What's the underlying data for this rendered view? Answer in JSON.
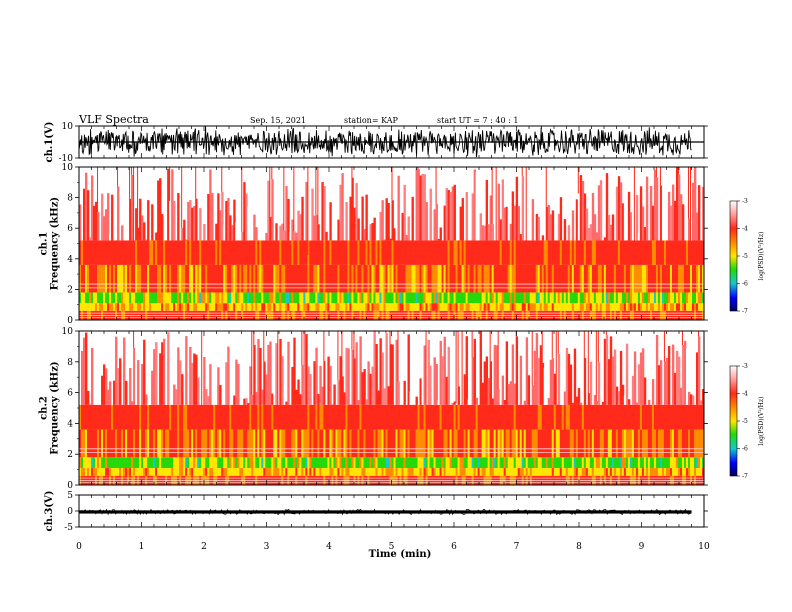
{
  "header": {
    "title": "VLF Spectra",
    "date": "Sep. 15, 2021",
    "station": "station= KAP",
    "start": "start  UT =  7 : 40 : 1"
  },
  "chart_data": [
    {
      "type": "line",
      "name": "ch1-waveform",
      "ylabel": "ch.1(V)",
      "ylim": [
        -10,
        10
      ],
      "yticks": [
        "10",
        "-10"
      ],
      "xlim": [
        0,
        10
      ],
      "note": "dense oscillating voltage trace spanning roughly -10 to 10 V"
    },
    {
      "type": "heatmap",
      "name": "ch1-spectrogram",
      "ylabel": "ch.1\nFrequency (kHz)",
      "ylim": [
        0,
        10
      ],
      "yticks": [
        "0",
        "2",
        "4",
        "6",
        "8",
        "10"
      ],
      "xlim": [
        0,
        10
      ],
      "colorbar": {
        "label": "log(PSD)(V²/Hz)",
        "range": [
          -7,
          -3
        ],
        "ticks": [
          "-3",
          "-4",
          "-5",
          "-6",
          "-7"
        ]
      }
    },
    {
      "type": "heatmap",
      "name": "ch2-spectrogram",
      "ylabel": "ch.2\nFrequency (kHz)",
      "ylim": [
        0,
        10
      ],
      "yticks": [
        "0",
        "2",
        "4",
        "6",
        "8",
        "10"
      ],
      "xlim": [
        0,
        10
      ],
      "colorbar": {
        "label": "log(PSD)(V²/Hz)",
        "range": [
          -7,
          -3
        ],
        "ticks": [
          "-3",
          "-4",
          "-5",
          "-6",
          "-7"
        ]
      }
    },
    {
      "type": "line",
      "name": "ch3-waveform",
      "ylabel": "ch.3(V)",
      "ylim": [
        -5,
        5
      ],
      "yticks": [
        "5",
        "0",
        "-5"
      ],
      "xlim": [
        0,
        10
      ],
      "note": "nearly flat trace around -0.3 V"
    }
  ],
  "xaxis": {
    "label": "Time (min)",
    "ticks": [
      "0",
      "1",
      "2",
      "3",
      "4",
      "5",
      "6",
      "7",
      "8",
      "9",
      "10"
    ]
  },
  "colors": {
    "red": "#ff2a1a",
    "orange": "#ff8c00",
    "yellow": "#ffe600",
    "green": "#25d80a",
    "cyan": "#18c8c8",
    "blue": "#0000ff",
    "navy": "#00005a"
  }
}
